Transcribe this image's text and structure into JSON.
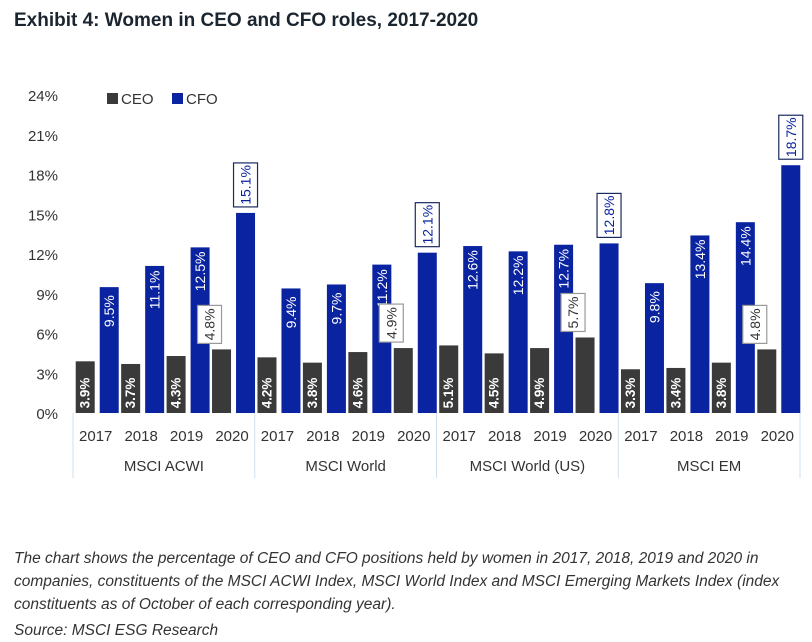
{
  "title": "Exhibit 4: Women in CEO and CFO roles, 2017-2020",
  "caption": "The chart shows the percentage of CEO and CFO positions held by women in 2017, 2018, 2019 and 2020 in companies, constituents of the MSCI ACWI Index, MSCI World Index and MSCI Emerging Markets Index (index constituents as of October of each corresponding year).",
  "source": "Source: MSCI ESG Research",
  "colors": {
    "ceo": "#3a3a3a",
    "cfo": "#0a23a0",
    "axis_text": "#333333",
    "group_line": "#cfe0ef"
  },
  "chart_data": {
    "type": "bar",
    "title": "Exhibit 4: Women in CEO and CFO roles, 2017-2020",
    "xlabel": "",
    "ylabel": "",
    "ylim": [
      0,
      24
    ],
    "yticks": [
      "0%",
      "3%",
      "6%",
      "9%",
      "12%",
      "15%",
      "18%",
      "21%",
      "24%"
    ],
    "ytick_values": [
      0,
      3,
      6,
      9,
      12,
      15,
      18,
      21,
      24
    ],
    "grid": false,
    "legend": {
      "placement": "top-left",
      "entries": [
        "CEO",
        "CFO"
      ]
    },
    "groups": [
      "MSCI ACWI",
      "MSCI World",
      "MSCI World (US)",
      "MSCI EM"
    ],
    "categories": [
      "2017",
      "2018",
      "2019",
      "2020"
    ],
    "series": [
      {
        "name": "CEO",
        "values": [
          [
            3.9,
            3.7,
            4.3,
            4.8
          ],
          [
            4.2,
            3.8,
            4.6,
            4.9
          ],
          [
            5.1,
            4.5,
            4.9,
            5.7
          ],
          [
            3.3,
            3.4,
            3.8,
            4.8
          ]
        ]
      },
      {
        "name": "CFO",
        "values": [
          [
            9.5,
            11.1,
            12.5,
            15.1
          ],
          [
            9.4,
            9.7,
            11.2,
            12.1
          ],
          [
            12.6,
            12.2,
            12.7,
            12.8
          ],
          [
            9.8,
            13.4,
            14.4,
            18.7
          ]
        ]
      }
    ],
    "labels": {
      "CEO": [
        [
          "3.9%",
          "3.7%",
          "4.3%",
          "4.8%"
        ],
        [
          "4.2%",
          "3.8%",
          "4.6%",
          "4.9%"
        ],
        [
          "5.1%",
          "4.5%",
          "4.9%",
          "5.7%"
        ],
        [
          "3.3%",
          "3.4%",
          "3.8%",
          "4.8%"
        ]
      ],
      "CFO": [
        [
          "9.5%",
          "11.1%",
          "12.5%",
          "15.1%"
        ],
        [
          "9.4%",
          "9.7%",
          "11.2%",
          "12.1%"
        ],
        [
          "12.6%",
          "12.2%",
          "12.7%",
          "12.8%"
        ],
        [
          "9.8%",
          "13.4%",
          "14.4%",
          "18.7%"
        ]
      ]
    }
  }
}
